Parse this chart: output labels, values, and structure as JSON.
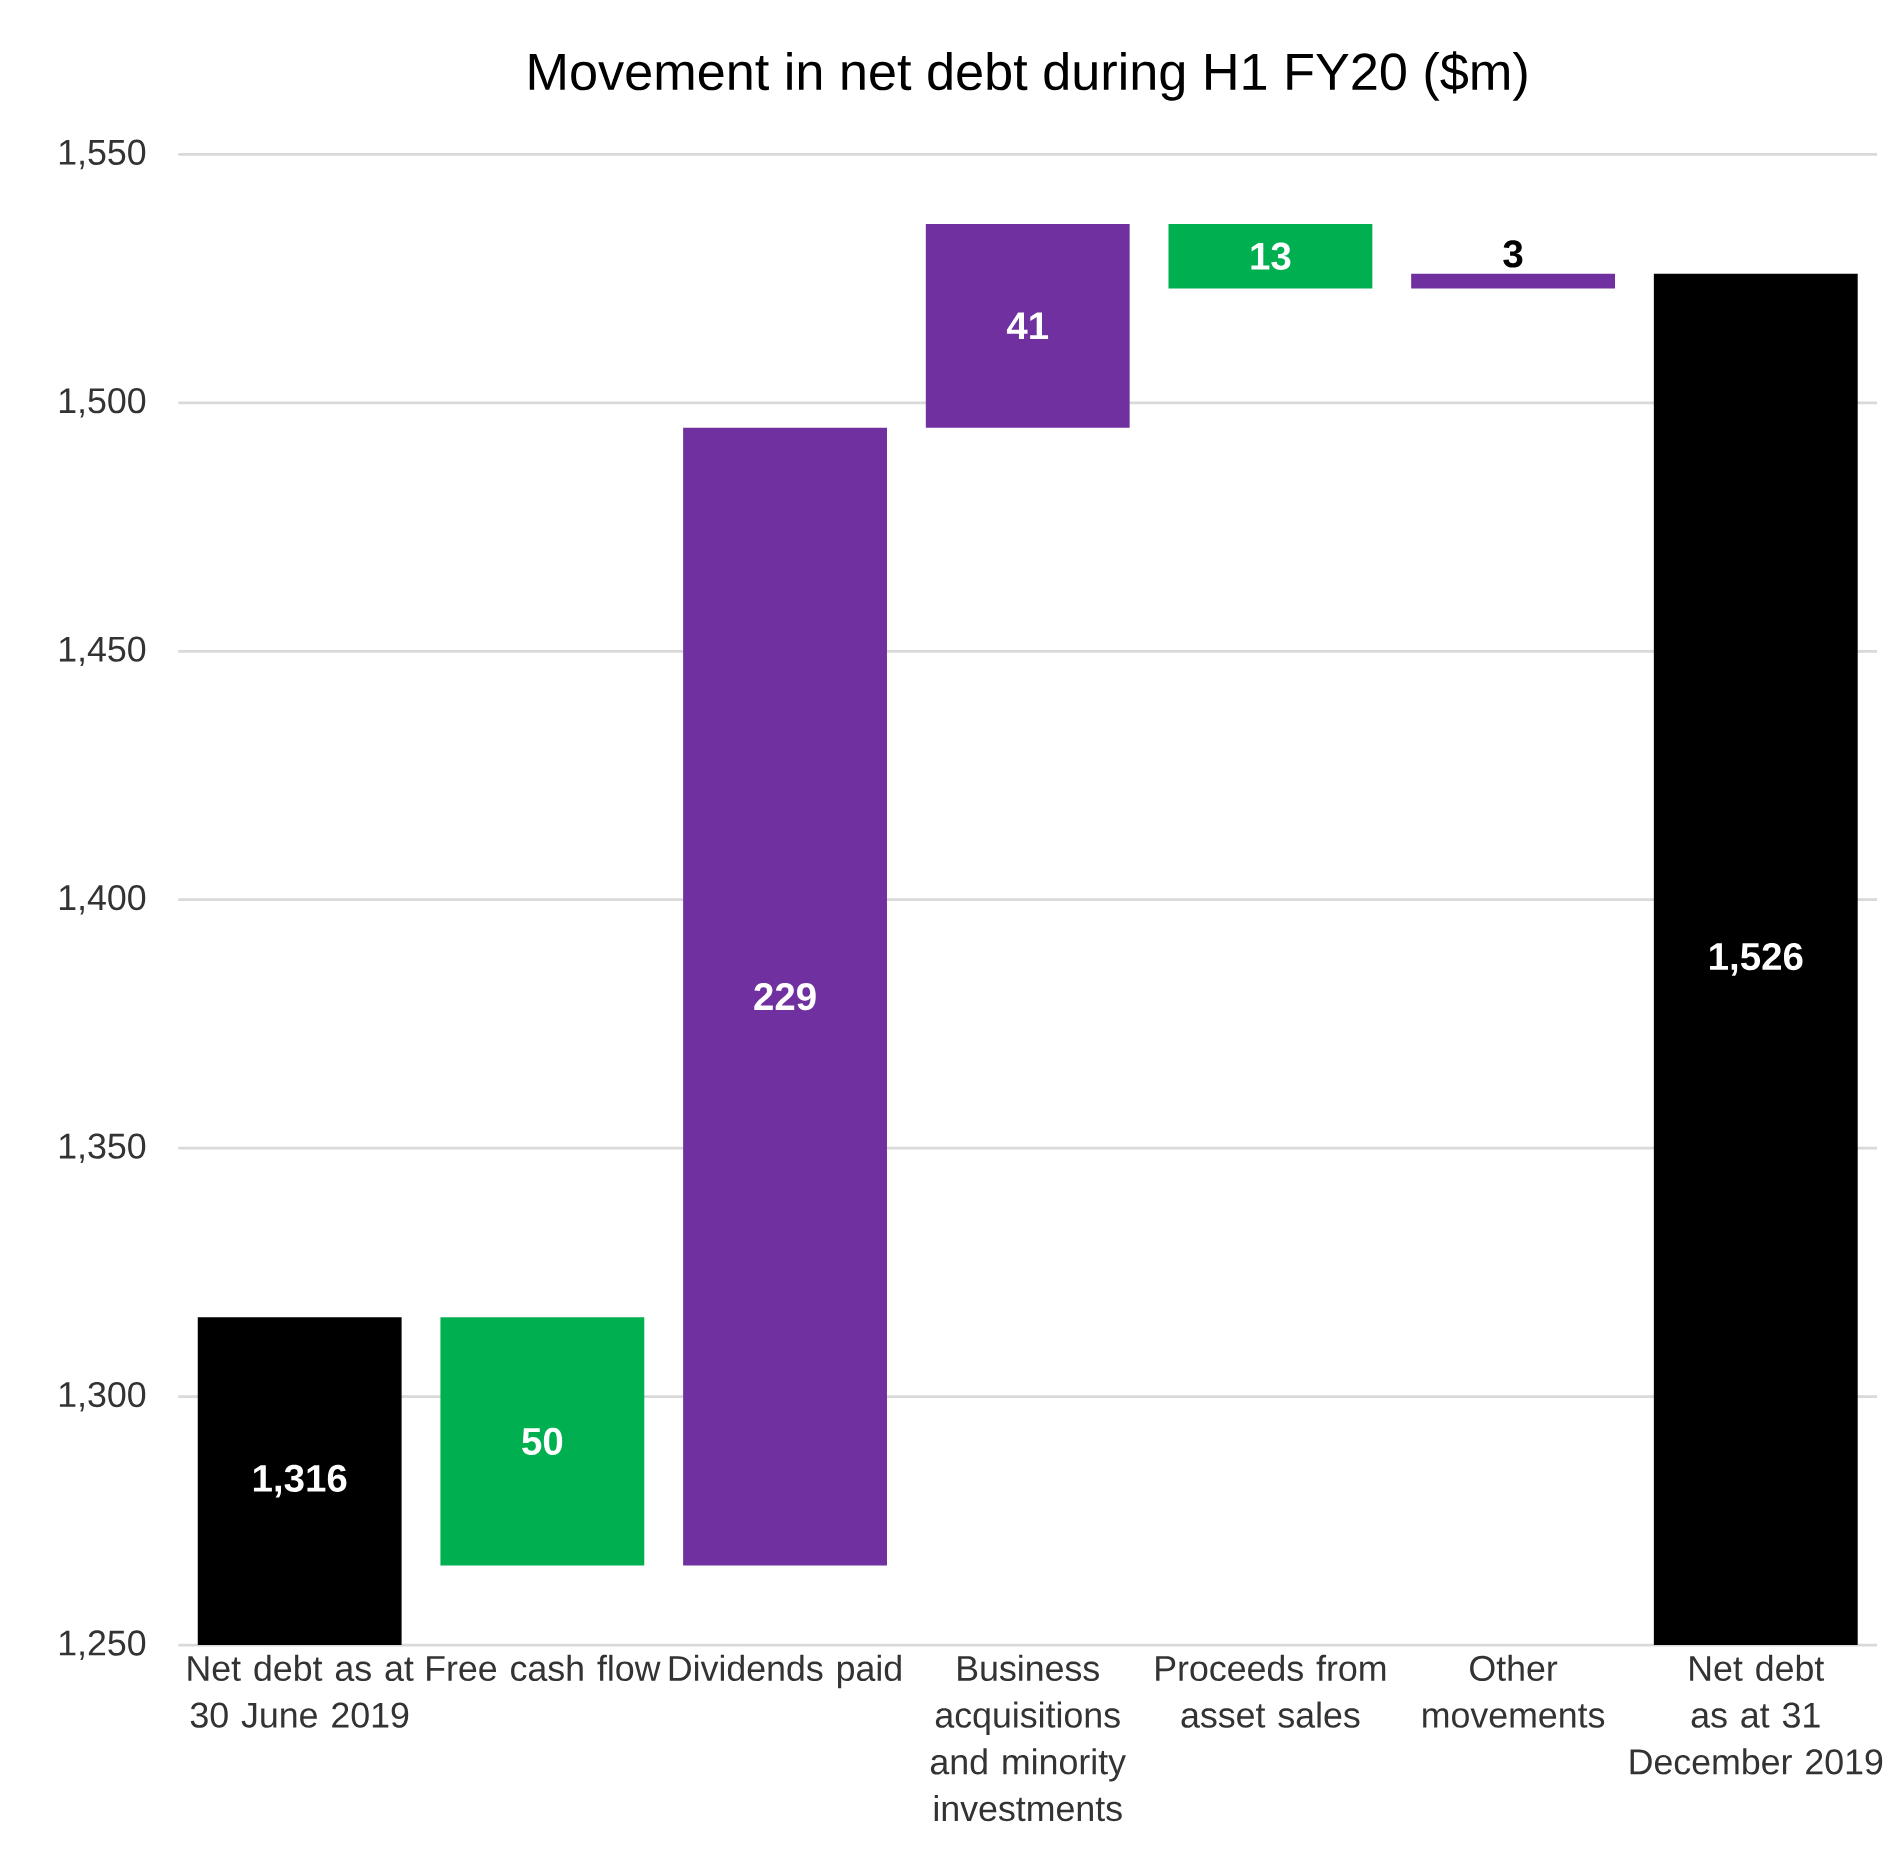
{
  "chart_data": {
    "type": "bar",
    "title": "Movement in net debt during H1 FY20 ($m)",
    "categories": [
      "Net debt as at 30 June 2019",
      "Free cash flow",
      "Dividends paid",
      "Business acquisitions and minority investments",
      "Proceeds from asset sales",
      "Other movements",
      "Net debt as at 31 December 2019"
    ],
    "values": [
      1316,
      50,
      229,
      41,
      13,
      3,
      1526
    ],
    "base": [
      null,
      1266,
      1266,
      1495,
      1523,
      1523,
      null
    ],
    "colors": [
      "#000000",
      "#00b050",
      "#7030a0",
      "#7030a0",
      "#00b050",
      "#7030a0",
      "#000000"
    ],
    "value_labels": [
      "1,316",
      "50",
      "229",
      "41",
      "13",
      "3",
      "1,526"
    ],
    "ylim": [
      1250,
      1550
    ],
    "yticks": [
      {
        "value": 1250,
        "label": "1,250"
      },
      {
        "value": 1300,
        "label": "1,300"
      },
      {
        "value": 1350,
        "label": "1,350"
      },
      {
        "value": 1400,
        "label": "1,400"
      },
      {
        "value": 1450,
        "label": "1,450"
      },
      {
        "value": 1500,
        "label": "1,500"
      },
      {
        "value": 1550,
        "label": "1,550"
      }
    ],
    "grid": "y"
  }
}
